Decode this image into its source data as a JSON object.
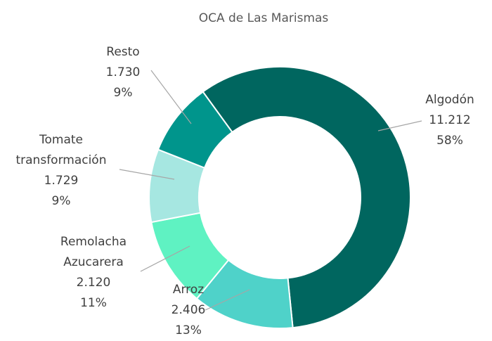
{
  "chart_data": {
    "type": "donut",
    "title": "OCA de Las Marismas",
    "categories": [
      "Algodón",
      "Arroz",
      "Remolacha Azucarera",
      "Tomate transformación",
      "Resto"
    ],
    "values": [
      11212,
      2406,
      2120,
      1729,
      1730
    ],
    "value_labels": [
      "11.212",
      "2.406",
      "2.120",
      "1.729",
      "1.730"
    ],
    "percent_labels": [
      "58%",
      "13%",
      "11%",
      "9%",
      "9%"
    ],
    "colors": [
      "#00665f",
      "#4fd2c9",
      "#5ff2c2",
      "#a6e7e1",
      "#00958c"
    ]
  }
}
